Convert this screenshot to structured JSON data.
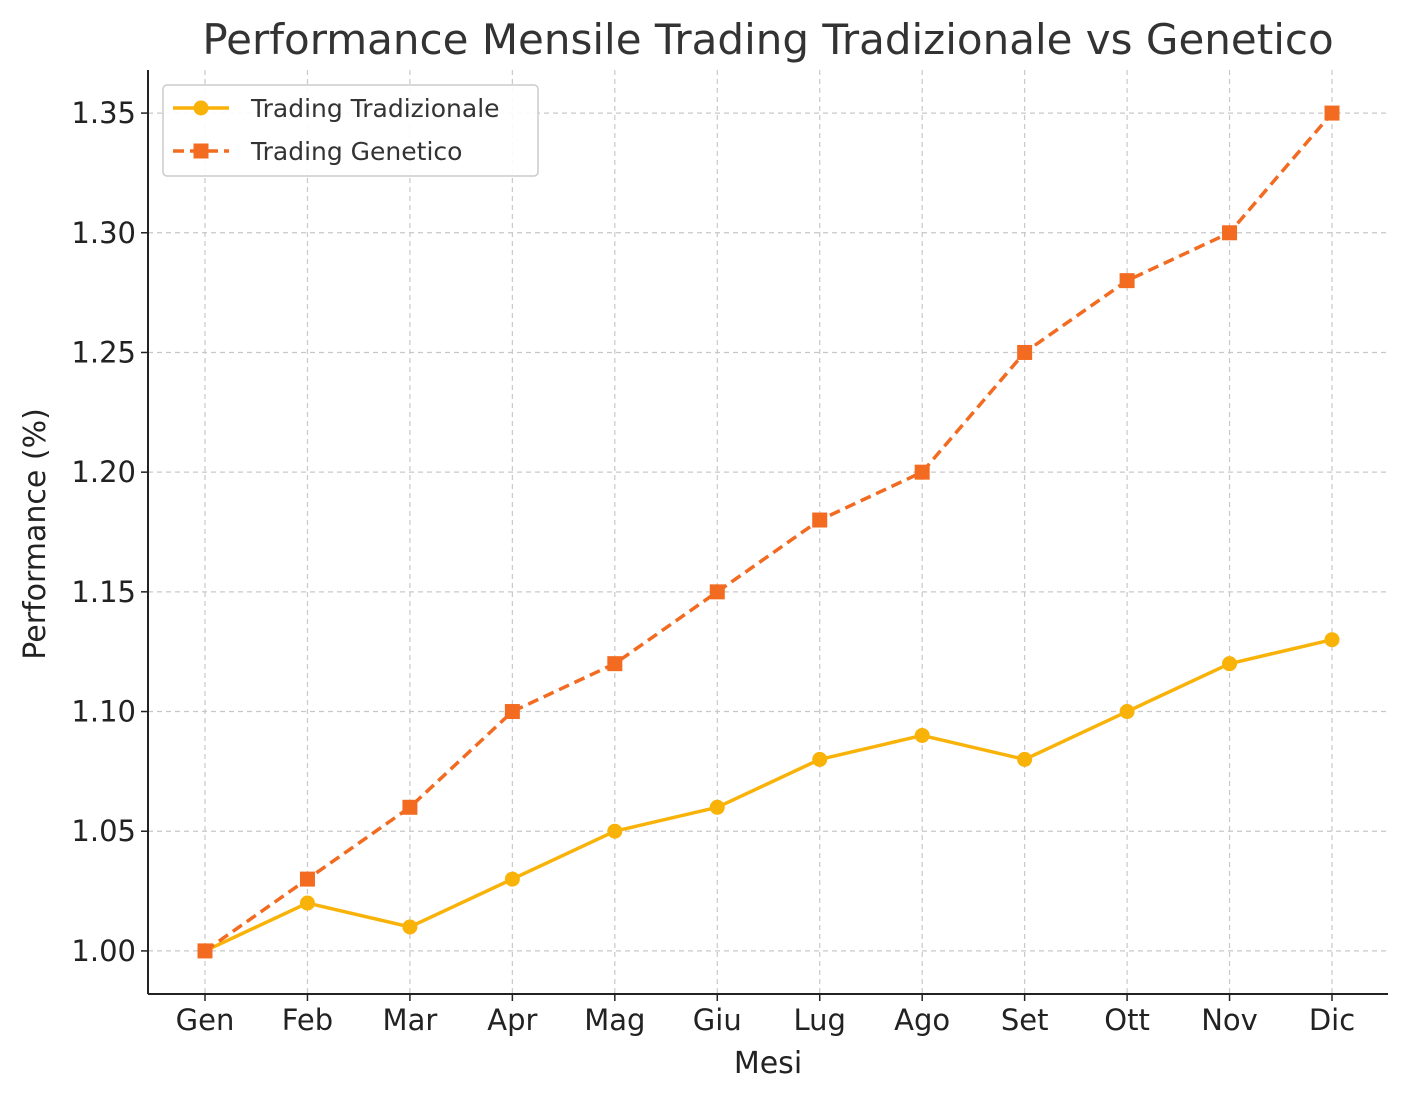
{
  "chart_data": {
    "type": "line",
    "title": "Performance Mensile Trading Tradizionale vs Genetico",
    "xlabel": "Mesi",
    "ylabel": "Performance (%)",
    "categories": [
      "Gen",
      "Feb",
      "Mar",
      "Apr",
      "Mag",
      "Giu",
      "Lug",
      "Ago",
      "Set",
      "Ott",
      "Nov",
      "Dic"
    ],
    "ylim": [
      0.982,
      1.368
    ],
    "yticks": [
      1.0,
      1.05,
      1.1,
      1.15,
      1.2,
      1.25,
      1.3,
      1.35
    ],
    "ytick_labels": [
      "1.00",
      "1.05",
      "1.10",
      "1.15",
      "1.20",
      "1.25",
      "1.30",
      "1.35"
    ],
    "grid": true,
    "legend_position": "top-left",
    "series": [
      {
        "name": "Trading Tradizionale",
        "values": [
          1.0,
          1.02,
          1.01,
          1.03,
          1.05,
          1.06,
          1.08,
          1.09,
          1.08,
          1.1,
          1.12,
          1.13
        ],
        "color": "#f9b208",
        "line_style": "solid",
        "marker": "circle"
      },
      {
        "name": "Trading Genetico",
        "values": [
          1.0,
          1.03,
          1.06,
          1.1,
          1.12,
          1.15,
          1.18,
          1.2,
          1.25,
          1.28,
          1.3,
          1.35
        ],
        "color": "#f26b21",
        "line_style": "dashed",
        "marker": "square"
      }
    ]
  }
}
